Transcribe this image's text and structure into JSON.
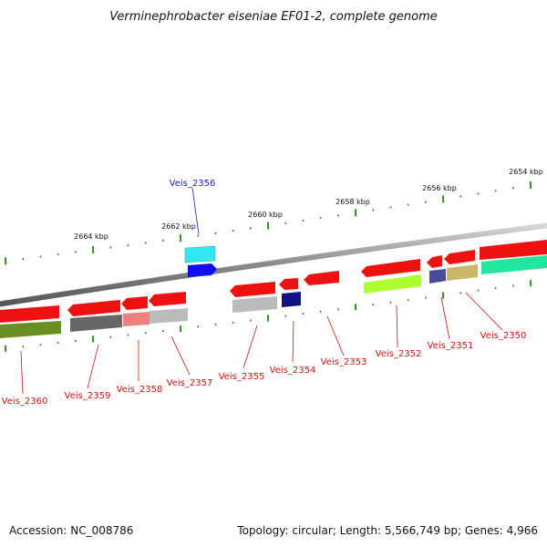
{
  "title": "Verminephrobacter eiseniae EF01-2, complete genome",
  "footer": {
    "accession": "Accession: NC_008786",
    "summary": "Topology: circular; Length: 5,566,749 bp; Genes: 4,966"
  },
  "scale_labels": [
    "2664 kbp",
    "2662 kbp",
    "2660 kbp",
    "2658 kbp",
    "2656 kbp",
    "2654 kbp"
  ],
  "gene_labels": [
    {
      "text": "Veis_2356",
      "color": "#1a1acc"
    },
    {
      "text": "Veis_2360",
      "color": "#cc1111"
    },
    {
      "text": "Veis_2359",
      "color": "#cc1111"
    },
    {
      "text": "Veis_2358",
      "color": "#cc1111"
    },
    {
      "text": "Veis_2357",
      "color": "#cc1111"
    },
    {
      "text": "Veis_2355",
      "color": "#cc1111"
    },
    {
      "text": "Veis_2354",
      "color": "#cc1111"
    },
    {
      "text": "Veis_2353",
      "color": "#cc1111"
    },
    {
      "text": "Veis_2352",
      "color": "#cc1111"
    },
    {
      "text": "Veis_2351",
      "color": "#cc1111"
    },
    {
      "text": "Veis_2350",
      "color": "#cc1111"
    }
  ],
  "colors": {
    "backbone": "#8a8a8a",
    "tick": "#2e8b22",
    "forward_cds": "#ee1111",
    "leader_line_red": "#cc1111",
    "leader_line_blue": "#1a1acc"
  }
}
